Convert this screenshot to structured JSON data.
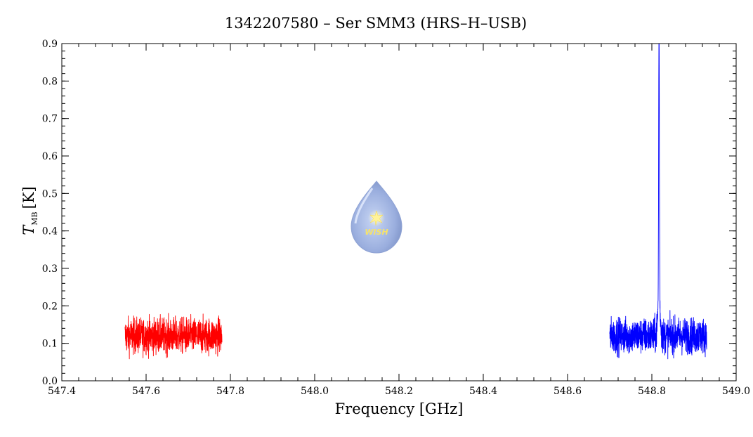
{
  "chart_data": {
    "type": "line",
    "title": "1342207580 – Ser SMM3 (HRS–H–USB)",
    "xlabel": "Frequency [GHz]",
    "ylabel_main": "T",
    "ylabel_sub": "MB",
    "ylabel_unit": "[K]",
    "xlim": [
      547.4,
      549.0
    ],
    "ylim": [
      0.0,
      0.9
    ],
    "x_ticks": [
      547.4,
      547.6,
      547.8,
      548.0,
      548.2,
      548.4,
      548.6,
      548.8,
      549.0
    ],
    "x_tick_labels": [
      "547.4",
      "547.6",
      "547.8",
      "548.0",
      "548.2",
      "548.4",
      "548.6",
      "548.8",
      "549.0"
    ],
    "y_ticks": [
      0.0,
      0.1,
      0.2,
      0.3,
      0.4,
      0.5,
      0.6,
      0.7,
      0.8,
      0.9
    ],
    "y_tick_labels": [
      "0.0",
      "0.1",
      "0.2",
      "0.3",
      "0.4",
      "0.5",
      "0.6",
      "0.7",
      "0.8",
      "0.9"
    ],
    "grid": false,
    "series": [
      {
        "color": "#ff0000",
        "x_range": [
          547.55,
          547.78
        ],
        "baseline": 0.12,
        "noise_min": 0.05,
        "noise_max": 0.19
      },
      {
        "color": "#0000ff",
        "x_range": [
          548.7,
          548.93
        ],
        "baseline": 0.12,
        "noise_min": 0.05,
        "noise_max": 0.19,
        "peak_x": 548.817,
        "peak_y": 0.85
      }
    ],
    "logo": {
      "text": "WISH",
      "color": "#9aaede"
    }
  }
}
